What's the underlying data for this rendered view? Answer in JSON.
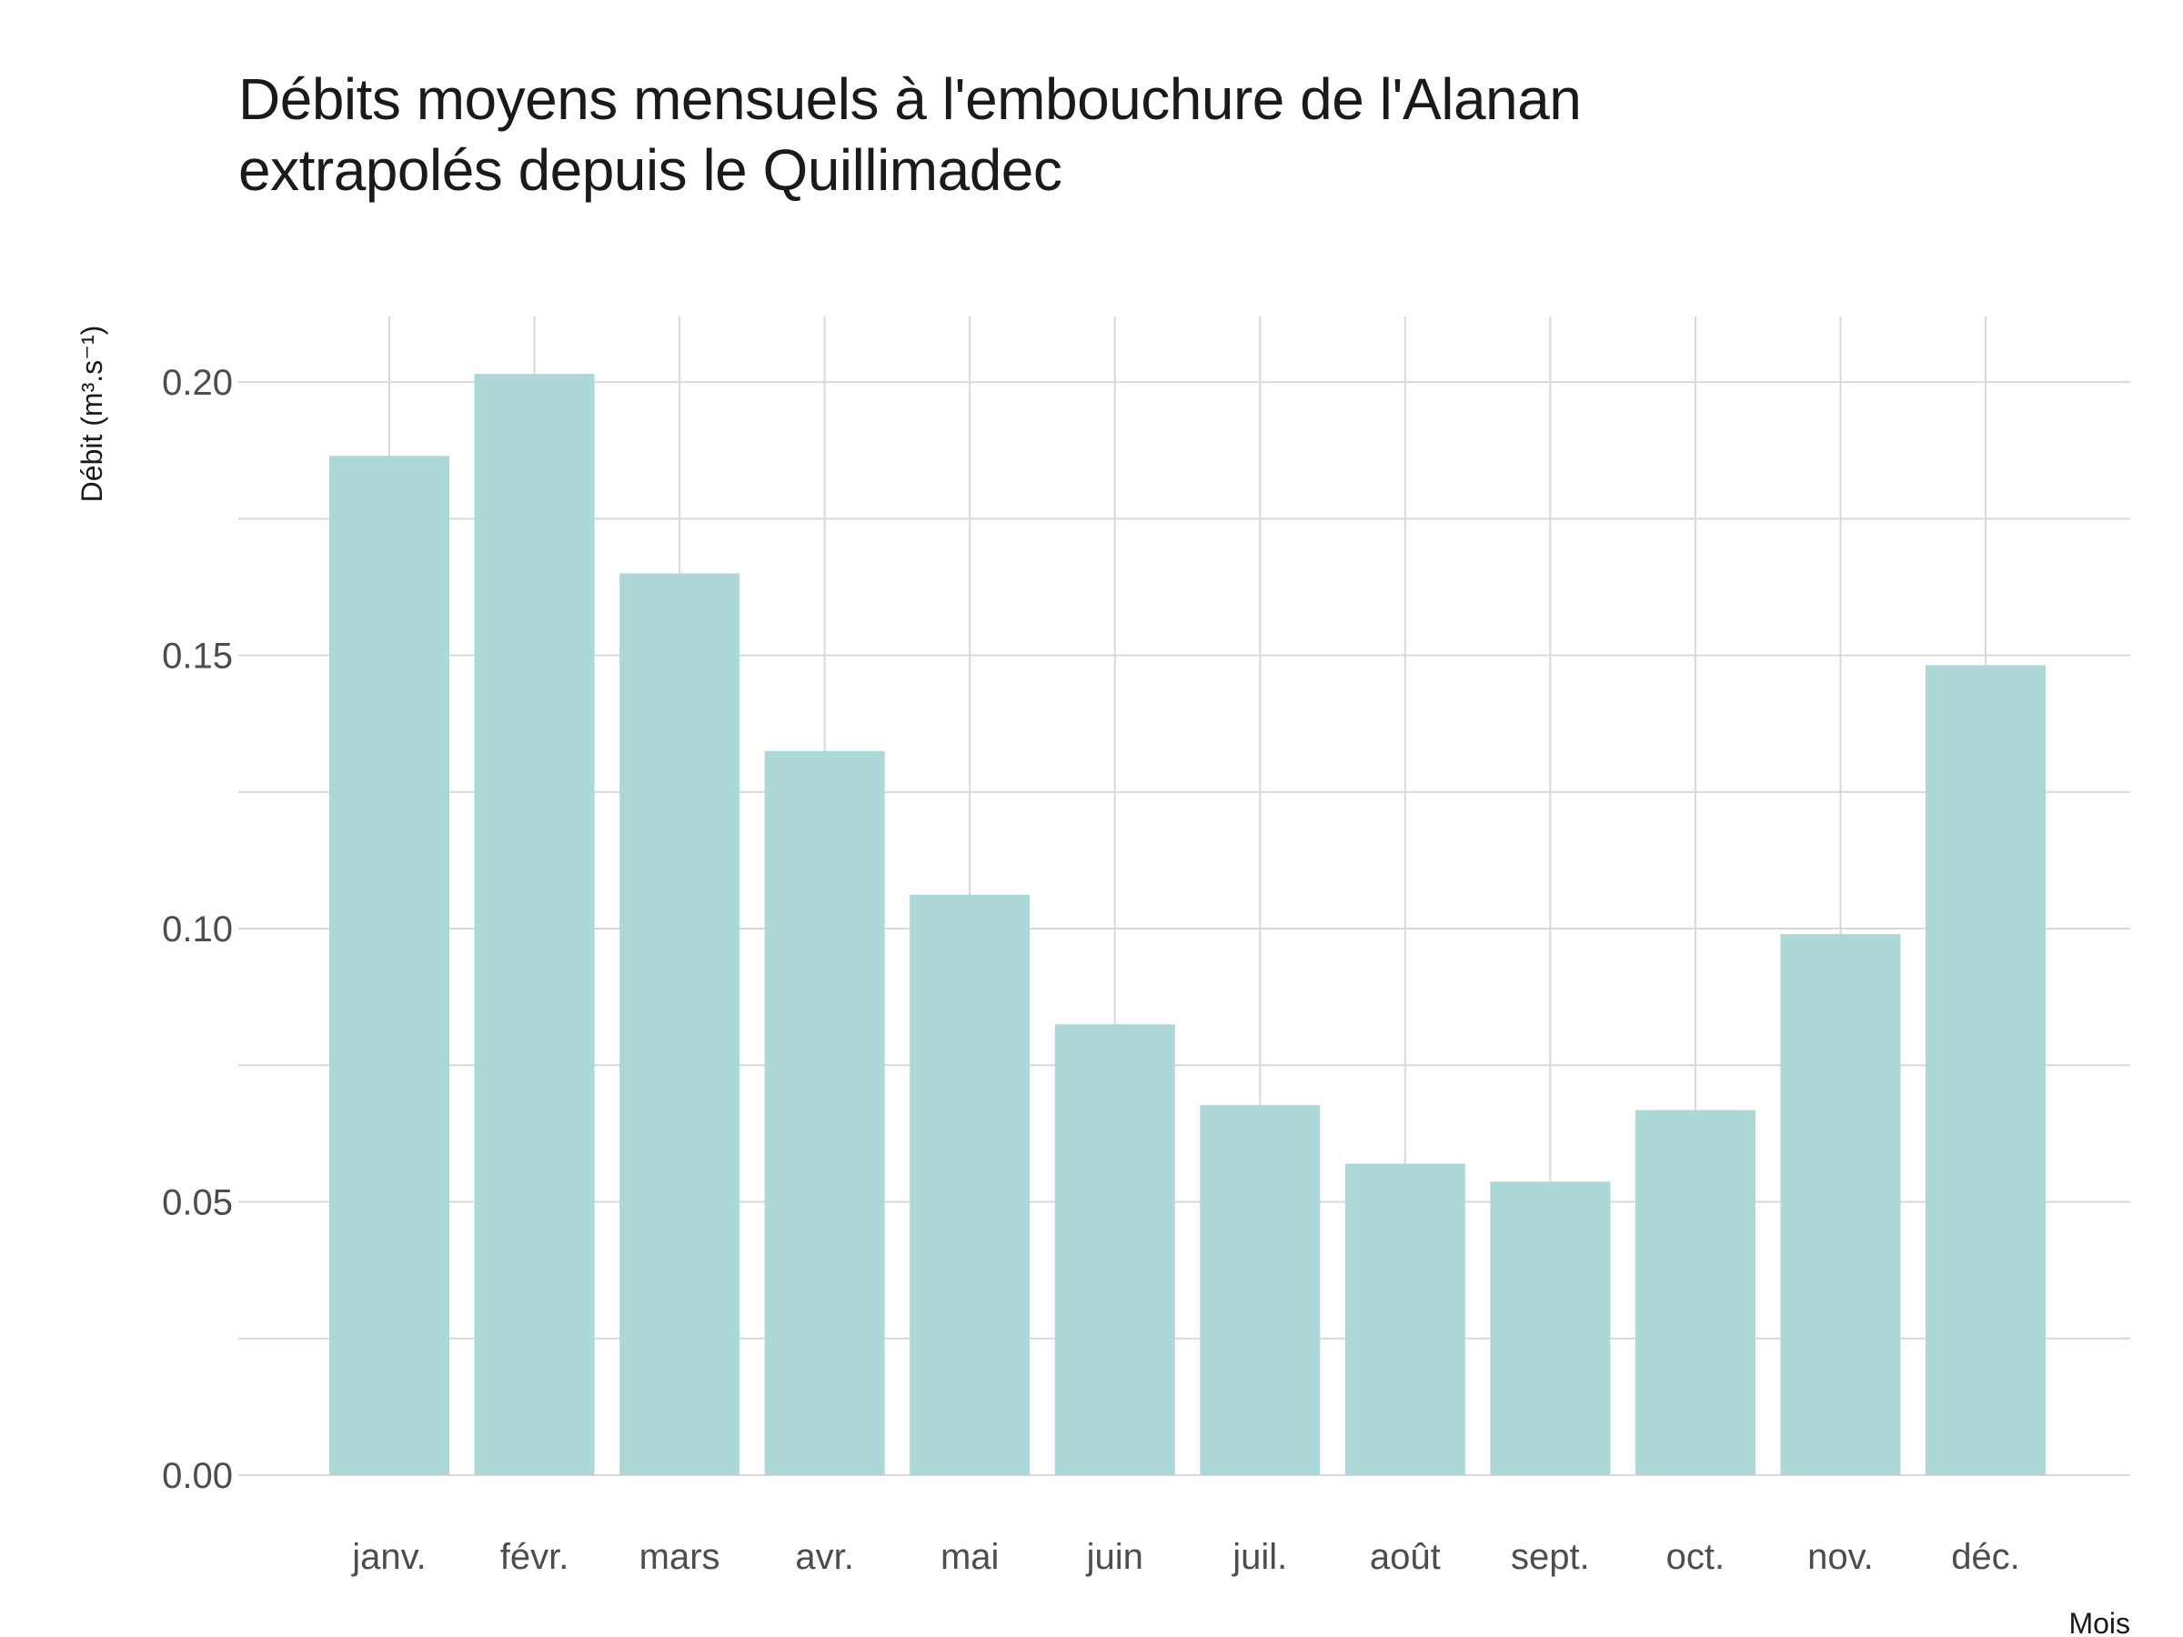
{
  "chart_data": {
    "type": "bar",
    "title_lines": [
      "Débits moyens mensuels à l'embouchure de l'Alanan",
      "extrapolés depuis le Quillimadec"
    ],
    "xlabel": "Mois",
    "ylabel": "Débit (m³.s⁻¹)",
    "categories": [
      "janv.",
      "févr.",
      "mars",
      "avr.",
      "mai",
      "juin",
      "juil.",
      "août",
      "sept.",
      "oct.",
      "nov.",
      "déc."
    ],
    "values": [
      0.1865,
      0.2015,
      0.165,
      0.1325,
      0.1062,
      0.0825,
      0.0677,
      0.057,
      0.0537,
      0.0668,
      0.099,
      0.1482
    ],
    "ylim": [
      0,
      0.212
    ],
    "yticks": [
      0.0,
      0.05,
      0.1,
      0.15,
      0.2
    ],
    "ytick_labels": [
      "0.00",
      "0.05",
      "0.10",
      "0.15",
      "0.20"
    ],
    "grid": true,
    "legend": "none",
    "colors": {
      "bar": "#add8d7",
      "grid": "#d9d9d9"
    }
  }
}
